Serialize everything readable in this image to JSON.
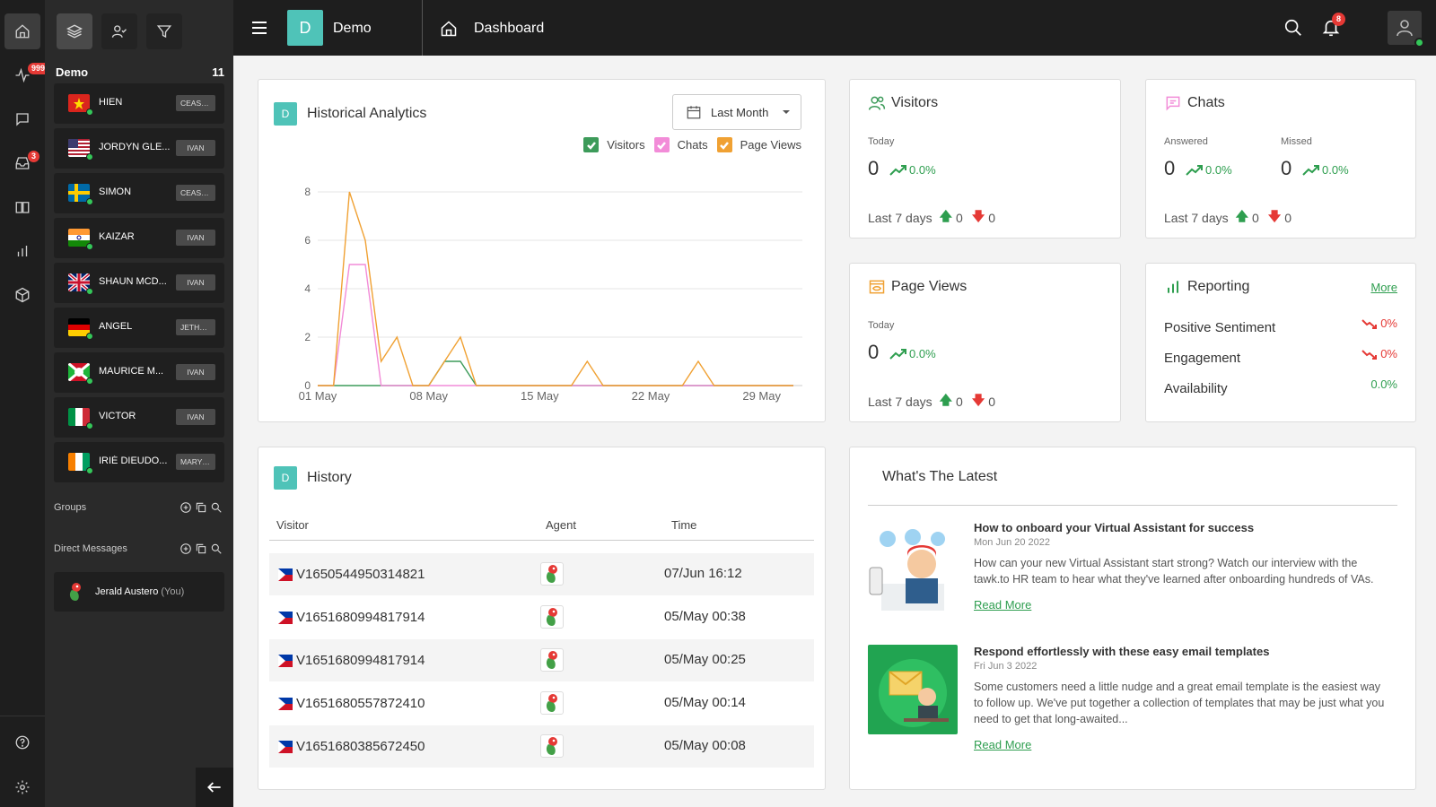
{
  "rail": {
    "notif_badge": "999+",
    "inbox_badge": "3"
  },
  "panel": {
    "group_name": "Demo",
    "group_count": "11",
    "contacts": [
      {
        "name": "HIEN",
        "agent": "CEASAR",
        "flag": "vn"
      },
      {
        "name": "JORDYN GLE...",
        "agent": "IVAN",
        "flag": "us"
      },
      {
        "name": "SIMON",
        "agent": "CEASAR",
        "flag": "se"
      },
      {
        "name": "KAIZAR",
        "agent": "IVAN",
        "flag": "in"
      },
      {
        "name": "SHAUN MCD...",
        "agent": "IVAN",
        "flag": "gb"
      },
      {
        "name": "ANGEL",
        "agent": "JETHR...",
        "flag": "de"
      },
      {
        "name": "MAURICE M...",
        "agent": "IVAN",
        "flag": "bi"
      },
      {
        "name": "VICTOR",
        "agent": "IVAN",
        "flag": "it"
      },
      {
        "name": "IRIÉ DIEUDO...",
        "agent": "MARY J...",
        "flag": "ci"
      }
    ],
    "groups_label": "Groups",
    "dm_label": "Direct Messages",
    "dm_user": "Jerald Austero",
    "dm_you": "(You)"
  },
  "topbar": {
    "logo_letter": "D",
    "property": "Demo",
    "page_title": "Dashboard",
    "bell_badge": "8"
  },
  "analytics": {
    "badge": "D",
    "title": "Historical Analytics",
    "range": "Last Month",
    "legend": [
      {
        "label": "Visitors",
        "color": "#3d9b5a"
      },
      {
        "label": "Chats",
        "color": "#f28cd8"
      },
      {
        "label": "Page Views",
        "color": "#f0a133"
      }
    ]
  },
  "chart_data": {
    "type": "line",
    "x": [
      1,
      2,
      3,
      4,
      5,
      6,
      7,
      8,
      9,
      10,
      11,
      12,
      13,
      14,
      15,
      16,
      17,
      18,
      19,
      20,
      21,
      22,
      23,
      24,
      25,
      26,
      27,
      28,
      29,
      30,
      31
    ],
    "x_tick_labels": [
      "01 May",
      "08 May",
      "15 May",
      "22 May",
      "29 May"
    ],
    "x_tick_positions": [
      1,
      8,
      15,
      22,
      29
    ],
    "ylim": [
      0,
      8
    ],
    "y_ticks": [
      0,
      2,
      4,
      6,
      8
    ],
    "grid": true,
    "series": [
      {
        "name": "Visitors",
        "color": "#3d9b5a",
        "values": [
          0,
          0,
          0,
          0,
          0,
          0,
          0,
          0,
          1,
          1,
          0,
          0,
          0,
          0,
          0,
          0,
          0,
          0,
          0,
          0,
          0,
          0,
          0,
          0,
          0,
          0,
          0,
          0,
          0,
          0,
          0
        ]
      },
      {
        "name": "Chats",
        "color": "#f28cd8",
        "values": [
          0,
          0,
          5,
          5,
          0,
          0,
          0,
          0,
          0,
          0,
          0,
          0,
          0,
          0,
          0,
          0,
          0,
          0,
          0,
          0,
          0,
          0,
          0,
          0,
          0,
          0,
          0,
          0,
          0,
          0,
          0
        ]
      },
      {
        "name": "Page Views",
        "color": "#f0a133",
        "values": [
          0,
          0,
          8,
          6,
          1,
          2,
          0,
          0,
          1,
          2,
          0,
          0,
          0,
          0,
          0,
          0,
          0,
          1,
          0,
          0,
          0,
          0,
          0,
          0,
          1,
          0,
          0,
          0,
          0,
          0,
          0
        ]
      }
    ]
  },
  "visitors": {
    "title": "Visitors",
    "today_label": "Today",
    "today_value": "0",
    "trend": "0.0%",
    "last7_label": "Last 7 days",
    "up": "0",
    "down": "0"
  },
  "chats": {
    "title": "Chats",
    "answered_label": "Answered",
    "answered_value": "0",
    "answered_trend": "0.0%",
    "missed_label": "Missed",
    "missed_value": "0",
    "missed_trend": "0.0%",
    "last7_label": "Last 7 days",
    "up": "0",
    "down": "0"
  },
  "pageviews": {
    "title": "Page Views",
    "today_label": "Today",
    "today_value": "0",
    "trend": "0.0%",
    "last7_label": "Last 7 days",
    "up": "0",
    "down": "0"
  },
  "reporting": {
    "title": "Reporting",
    "more": "More",
    "rows": [
      {
        "label": "Positive Sentiment",
        "value": "0%"
      },
      {
        "label": "Engagement",
        "value": "0%"
      },
      {
        "label": "Availability",
        "value": "0.0%"
      }
    ]
  },
  "history": {
    "badge": "D",
    "title": "History",
    "headers": {
      "visitor": "Visitor",
      "agent": "Agent",
      "time": "Time"
    },
    "rows": [
      {
        "visitor": "V1650544950314821",
        "time": "07/Jun 16:12"
      },
      {
        "visitor": "V1651680994817914",
        "time": "05/May 00:38"
      },
      {
        "visitor": "V1651680994817914",
        "time": "05/May 00:25"
      },
      {
        "visitor": "V1651680557872410",
        "time": "05/May 00:14"
      },
      {
        "visitor": "V1651680385672450",
        "time": "05/May 00:08"
      }
    ]
  },
  "latest": {
    "title": "What's The Latest",
    "articles": [
      {
        "title": "How to onboard your Virtual Assistant for success",
        "date": "Mon Jun 20 2022",
        "desc": "How can your new Virtual Assistant start strong? Watch our interview with the tawk.to HR team to hear what they've learned after onboarding hundreds of VAs.",
        "link": "Read More"
      },
      {
        "title": "Respond effortlessly with these easy email templates",
        "date": "Fri Jun 3 2022",
        "desc": "Some customers need a little nudge and a great email template is the easiest way to follow up. We've put together a collection of templates that may be just what you need to get that long-awaited...",
        "link": "Read More"
      }
    ]
  }
}
